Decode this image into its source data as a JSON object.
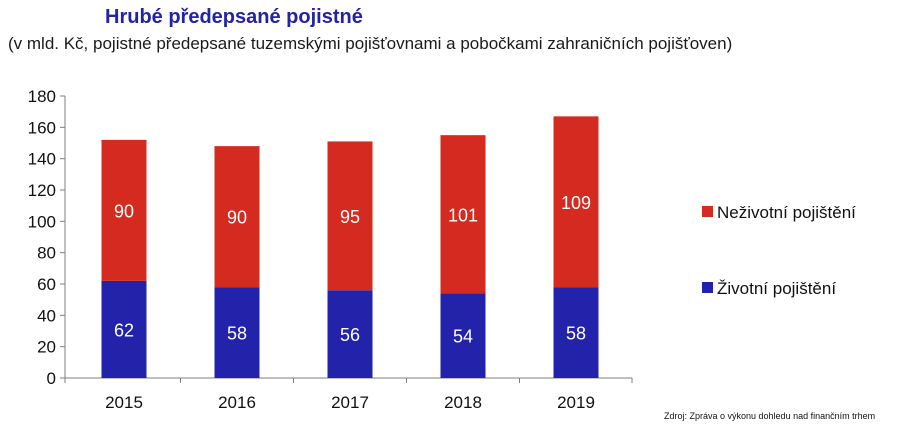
{
  "chart_data": {
    "type": "bar",
    "stacked": true,
    "title": "Hrubé předepsané pojistné",
    "subtitle": "(v mld. Kč, pojistné předepsané tuzemskými pojišťovnami a pobočkami zahraničních pojišťoven)",
    "categories": [
      "2015",
      "2016",
      "2017",
      "2018",
      "2019"
    ],
    "series": [
      {
        "name": "Životní pojištění",
        "values": [
          62,
          58,
          56,
          54,
          58
        ],
        "color": "#2222aa"
      },
      {
        "name": "Neživotní pojištění",
        "values": [
          90,
          90,
          95,
          101,
          109
        ],
        "color": "#d42a1f"
      }
    ],
    "ylim": [
      0,
      180
    ],
    "yticks": [
      0,
      20,
      40,
      60,
      80,
      100,
      120,
      140,
      160,
      180
    ],
    "grid": false,
    "legend_position": "right",
    "data_label_color": "#ffffff",
    "title_color": "#2323a6",
    "source": "Zdroj: Zpráva o výkonu dohledu nad finančním trhem"
  }
}
